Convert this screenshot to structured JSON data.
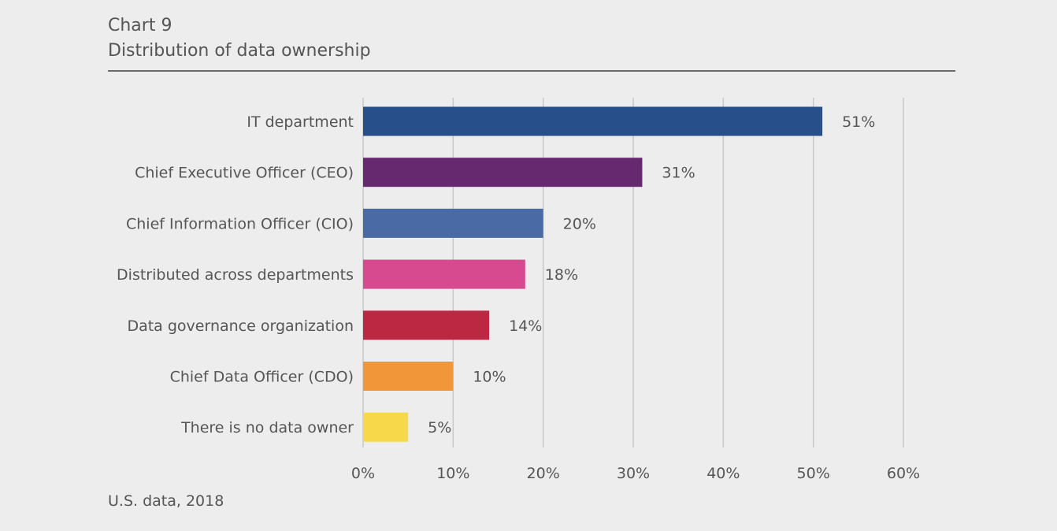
{
  "header": {
    "chart_number": "Chart 9",
    "title": "Distribution of data ownership"
  },
  "footer": {
    "source_note": "U.S. data, 2018"
  },
  "chart_data": {
    "type": "bar",
    "orientation": "horizontal",
    "title": "Distribution of data ownership",
    "xlabel": "",
    "ylabel": "",
    "xlim": [
      0,
      60
    ],
    "x_ticks": [
      "0%",
      "10%",
      "20%",
      "30%",
      "40%",
      "50%",
      "60%"
    ],
    "grid": "vertical",
    "legend": "none",
    "categories": [
      "IT department",
      "Chief Executive Officer (CEO)",
      "Chief Information Officer (CIO)",
      "Distributed across departments",
      "Data governance organization",
      "Chief Data Officer (CDO)",
      "There is no data owner"
    ],
    "values": [
      51,
      31,
      20,
      18,
      14,
      10,
      5
    ],
    "value_labels": [
      "51%",
      "31%",
      "20%",
      "18%",
      "14%",
      "10%",
      "5%"
    ],
    "colors": [
      "#27508b",
      "#66286e",
      "#4a6aa5",
      "#d84a8f",
      "#bc2842",
      "#f2963a",
      "#f7d84a"
    ]
  }
}
